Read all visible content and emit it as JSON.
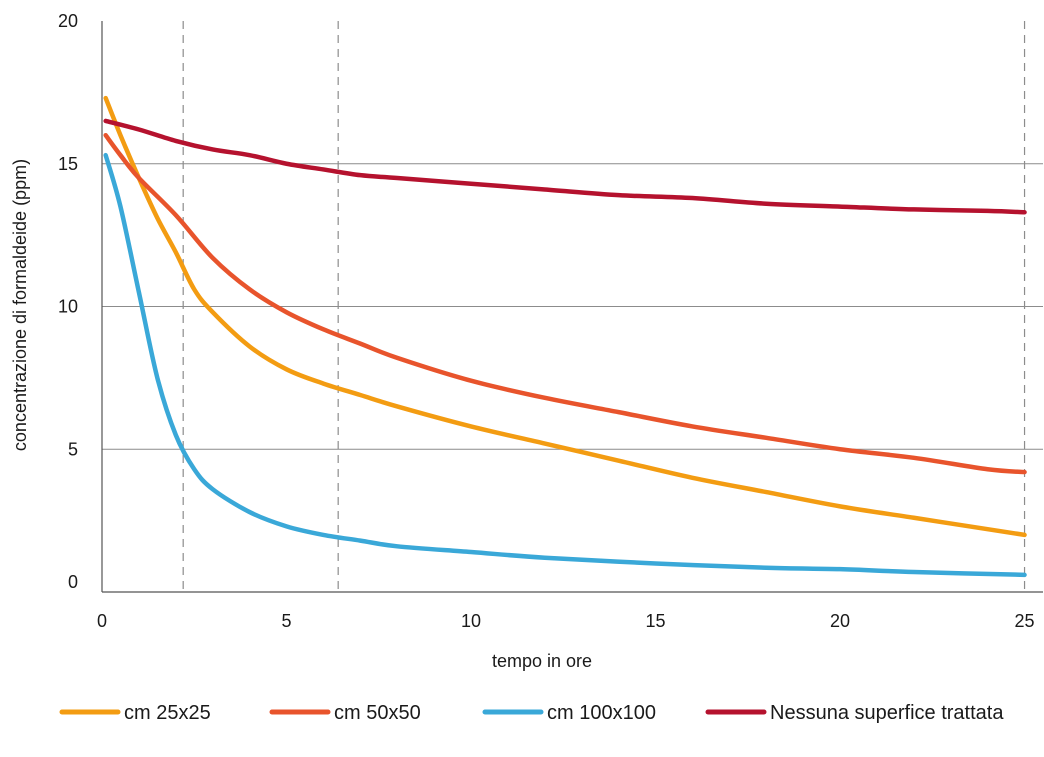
{
  "chart_data": {
    "type": "line",
    "title": "",
    "xlabel": "tempo in ore",
    "ylabel": "concentrazione di formaldeide (ppm)",
    "xlim": [
      0,
      25.5
    ],
    "ylim": [
      0,
      20
    ],
    "x_ticks": [
      0,
      5,
      10,
      15,
      20,
      25
    ],
    "y_ticks": [
      0,
      5,
      10,
      15,
      20
    ],
    "x_tick_labels": [
      "0",
      "5",
      "10",
      "15",
      "20",
      "25"
    ],
    "y_tick_labels": [
      "0",
      "5",
      "10",
      "15",
      "20"
    ],
    "grid": "horizontal solid lines at 5, 10, 15; vertical dashed lines near 2.2 h, 6.4 h and 25 h",
    "reference_lines_x": [
      2.2,
      6.4,
      25
    ],
    "legend_position": "bottom",
    "series": [
      {
        "name": "cm 25x25",
        "color": "#f39c12",
        "x": [
          0.1,
          0.5,
          1,
          1.5,
          2,
          2.5,
          3,
          4,
          5,
          6,
          7,
          8,
          10,
          12,
          14,
          16,
          18,
          20,
          22,
          24,
          25
        ],
        "values": [
          17.3,
          16.0,
          14.5,
          13.1,
          11.9,
          10.6,
          9.8,
          8.6,
          7.8,
          7.3,
          6.9,
          6.5,
          5.8,
          5.2,
          4.6,
          4.0,
          3.5,
          3.0,
          2.6,
          2.2,
          2.0
        ]
      },
      {
        "name": "cm 50x50",
        "color": "#e8542c",
        "x": [
          0.1,
          0.5,
          1,
          2,
          3,
          4,
          5,
          6,
          7,
          8,
          10,
          12,
          14,
          16,
          18,
          20,
          22,
          24,
          25
        ],
        "values": [
          16.0,
          15.3,
          14.5,
          13.2,
          11.7,
          10.6,
          9.8,
          9.2,
          8.7,
          8.2,
          7.4,
          6.8,
          6.3,
          5.8,
          5.4,
          5.0,
          4.7,
          4.3,
          4.2
        ]
      },
      {
        "name": "cm 100x100",
        "color": "#3aa8d8",
        "x": [
          0.1,
          0.5,
          1,
          1.5,
          2,
          2.5,
          3,
          4,
          5,
          6,
          7,
          8,
          10,
          12,
          15,
          18,
          20,
          22,
          25
        ],
        "values": [
          15.3,
          13.5,
          10.5,
          7.5,
          5.5,
          4.3,
          3.6,
          2.8,
          2.3,
          2.0,
          1.8,
          1.6,
          1.4,
          1.2,
          1.0,
          0.85,
          0.8,
          0.7,
          0.6
        ]
      },
      {
        "name": "Nessuna superfice trattata",
        "color": "#b5122e",
        "x": [
          0.1,
          1,
          2,
          3,
          4,
          5,
          6,
          7,
          8,
          10,
          12,
          14,
          16,
          18,
          20,
          22,
          24,
          25
        ],
        "values": [
          16.5,
          16.2,
          15.8,
          15.5,
          15.3,
          15.0,
          14.8,
          14.6,
          14.5,
          14.3,
          14.1,
          13.9,
          13.8,
          13.6,
          13.5,
          13.4,
          13.35,
          13.3
        ]
      }
    ]
  }
}
